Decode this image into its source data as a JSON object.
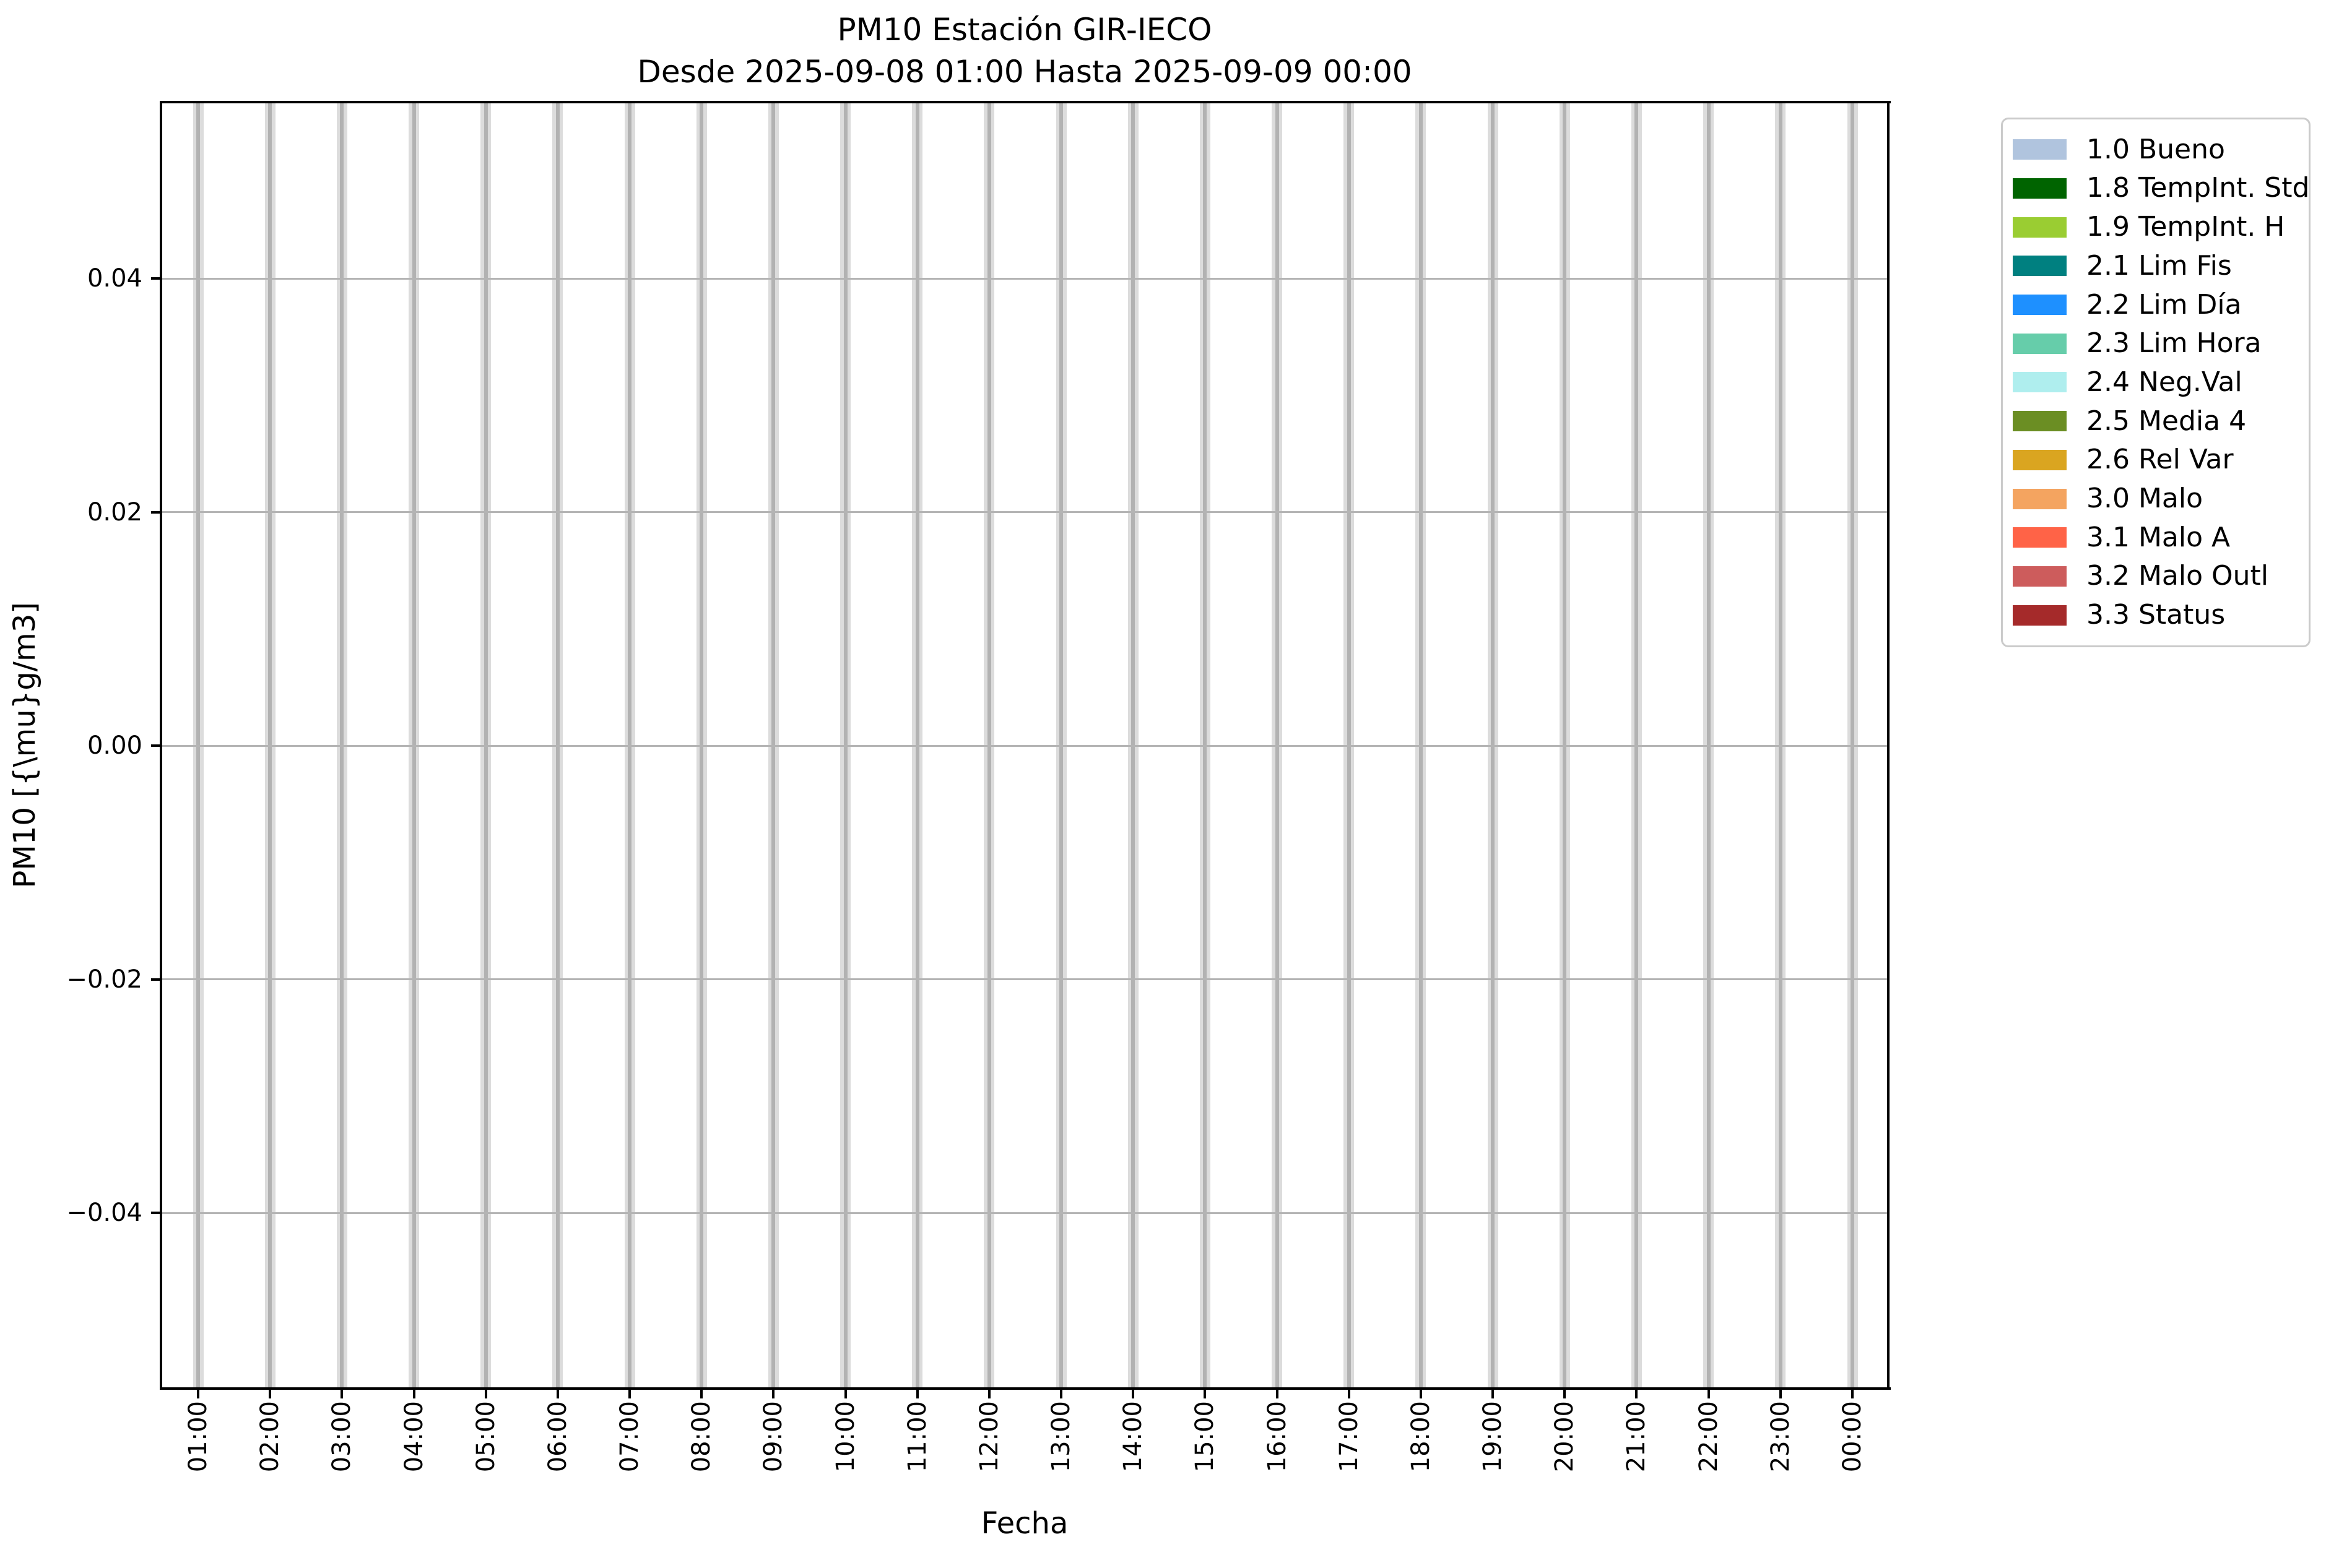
{
  "title": {
    "line1": "PM10 Estación GIR-IECO",
    "line2": "Desde 2025-09-08 01:00 Hasta 2025-09-09 00:00"
  },
  "axes": {
    "xlabel": "Fecha",
    "ylabel": "PM10 [{\\mu}g/m3]",
    "x_tick_labels": [
      "01:00",
      "02:00",
      "03:00",
      "04:00",
      "05:00",
      "06:00",
      "07:00",
      "08:00",
      "09:00",
      "10:00",
      "11:00",
      "12:00",
      "13:00",
      "14:00",
      "15:00",
      "16:00",
      "17:00",
      "18:00",
      "19:00",
      "20:00",
      "21:00",
      "22:00",
      "23:00",
      "00:00"
    ],
    "y_tick_labels": [
      "0.04",
      "0.02",
      "0.00",
      "−0.02",
      "−0.04"
    ]
  },
  "legend": {
    "entries": [
      {
        "label": "1.0 Bueno",
        "color": "#b0c4de"
      },
      {
        "label": "1.8 TempInt. Std",
        "color": "#006400"
      },
      {
        "label": "1.9 TempInt. H",
        "color": "#9acd32"
      },
      {
        "label": "2.1 Lim Fis",
        "color": "#008080"
      },
      {
        "label": "2.2 Lim Día",
        "color": "#1e90ff"
      },
      {
        "label": "2.3 Lim Hora",
        "color": "#66cdaa"
      },
      {
        "label": "2.4 Neg.Val",
        "color": "#afeeee"
      },
      {
        "label": "2.5 Media 4",
        "color": "#6b8e23"
      },
      {
        "label": "2.6 Rel Var",
        "color": "#daa520"
      },
      {
        "label": "3.0 Malo",
        "color": "#f4a460"
      },
      {
        "label": "3.1 Malo A",
        "color": "#ff6347"
      },
      {
        "label": "3.2 Malo Outl",
        "color": "#cd5c5c"
      },
      {
        "label": "3.3 Status",
        "color": "#a52a2a"
      }
    ]
  },
  "chart_data": {
    "type": "bar",
    "title": "PM10 Estación GIR-IECO",
    "subtitle": "Desde 2025-09-08 01:00 Hasta 2025-09-09 00:00",
    "xlabel": "Fecha",
    "ylabel": "PM10 [{\\mu}g/m3]",
    "categories": [
      "01:00",
      "02:00",
      "03:00",
      "04:00",
      "05:00",
      "06:00",
      "07:00",
      "08:00",
      "09:00",
      "10:00",
      "11:00",
      "12:00",
      "13:00",
      "14:00",
      "15:00",
      "16:00",
      "17:00",
      "18:00",
      "19:00",
      "20:00",
      "21:00",
      "22:00",
      "23:00",
      "00:00"
    ],
    "series": [
      {
        "name": "1.0 Bueno",
        "color": "#b0c4de",
        "values": [
          0,
          0,
          0,
          0,
          0,
          0,
          0,
          0,
          0,
          0,
          0,
          0,
          0,
          0,
          0,
          0,
          0,
          0,
          0,
          0,
          0,
          0,
          0,
          0
        ]
      },
      {
        "name": "1.8 TempInt. Std",
        "color": "#006400",
        "values": [
          0,
          0,
          0,
          0,
          0,
          0,
          0,
          0,
          0,
          0,
          0,
          0,
          0,
          0,
          0,
          0,
          0,
          0,
          0,
          0,
          0,
          0,
          0,
          0
        ]
      },
      {
        "name": "1.9 TempInt. H",
        "color": "#9acd32",
        "values": [
          0,
          0,
          0,
          0,
          0,
          0,
          0,
          0,
          0,
          0,
          0,
          0,
          0,
          0,
          0,
          0,
          0,
          0,
          0,
          0,
          0,
          0,
          0,
          0
        ]
      },
      {
        "name": "2.1 Lim Fis",
        "color": "#008080",
        "values": [
          0,
          0,
          0,
          0,
          0,
          0,
          0,
          0,
          0,
          0,
          0,
          0,
          0,
          0,
          0,
          0,
          0,
          0,
          0,
          0,
          0,
          0,
          0,
          0
        ]
      },
      {
        "name": "2.2 Lim Día",
        "color": "#1e90ff",
        "values": [
          0,
          0,
          0,
          0,
          0,
          0,
          0,
          0,
          0,
          0,
          0,
          0,
          0,
          0,
          0,
          0,
          0,
          0,
          0,
          0,
          0,
          0,
          0,
          0
        ]
      },
      {
        "name": "2.3 Lim Hora",
        "color": "#66cdaa",
        "values": [
          0,
          0,
          0,
          0,
          0,
          0,
          0,
          0,
          0,
          0,
          0,
          0,
          0,
          0,
          0,
          0,
          0,
          0,
          0,
          0,
          0,
          0,
          0,
          0
        ]
      },
      {
        "name": "2.4 Neg.Val",
        "color": "#afeeee",
        "values": [
          0,
          0,
          0,
          0,
          0,
          0,
          0,
          0,
          0,
          0,
          0,
          0,
          0,
          0,
          0,
          0,
          0,
          0,
          0,
          0,
          0,
          0,
          0,
          0
        ]
      },
      {
        "name": "2.5 Media 4",
        "color": "#6b8e23",
        "values": [
          0,
          0,
          0,
          0,
          0,
          0,
          0,
          0,
          0,
          0,
          0,
          0,
          0,
          0,
          0,
          0,
          0,
          0,
          0,
          0,
          0,
          0,
          0,
          0
        ]
      },
      {
        "name": "2.6 Rel Var",
        "color": "#daa520",
        "values": [
          0,
          0,
          0,
          0,
          0,
          0,
          0,
          0,
          0,
          0,
          0,
          0,
          0,
          0,
          0,
          0,
          0,
          0,
          0,
          0,
          0,
          0,
          0,
          0
        ]
      },
      {
        "name": "3.0 Malo",
        "color": "#f4a460",
        "values": [
          0,
          0,
          0,
          0,
          0,
          0,
          0,
          0,
          0,
          0,
          0,
          0,
          0,
          0,
          0,
          0,
          0,
          0,
          0,
          0,
          0,
          0,
          0,
          0
        ]
      },
      {
        "name": "3.1 Malo A",
        "color": "#ff6347",
        "values": [
          0,
          0,
          0,
          0,
          0,
          0,
          0,
          0,
          0,
          0,
          0,
          0,
          0,
          0,
          0,
          0,
          0,
          0,
          0,
          0,
          0,
          0,
          0,
          0
        ]
      },
      {
        "name": "3.2 Malo Outl",
        "color": "#cd5c5c",
        "values": [
          0,
          0,
          0,
          0,
          0,
          0,
          0,
          0,
          0,
          0,
          0,
          0,
          0,
          0,
          0,
          0,
          0,
          0,
          0,
          0,
          0,
          0,
          0,
          0
        ]
      },
      {
        "name": "3.3 Status",
        "color": "#a52a2a",
        "values": [
          0,
          0,
          0,
          0,
          0,
          0,
          0,
          0,
          0,
          0,
          0,
          0,
          0,
          0,
          0,
          0,
          0,
          0,
          0,
          0,
          0,
          0,
          0,
          0
        ]
      }
    ],
    "yticks": [
      0.04,
      0.02,
      0.0,
      -0.02,
      -0.04
    ],
    "ylim": [
      -0.055,
      0.055
    ],
    "grid": true,
    "grid_color": "#b4b4b4",
    "hour_band_colors": {
      "fill": "#dcdcdc",
      "core": "#b2b2b2"
    },
    "legend_position": "outside-right-top",
    "annotations": "No colored flag bars are visible; every hourly slot shows only an empty light-gray band spanning the full y-range (all series values are zero / no data)."
  }
}
